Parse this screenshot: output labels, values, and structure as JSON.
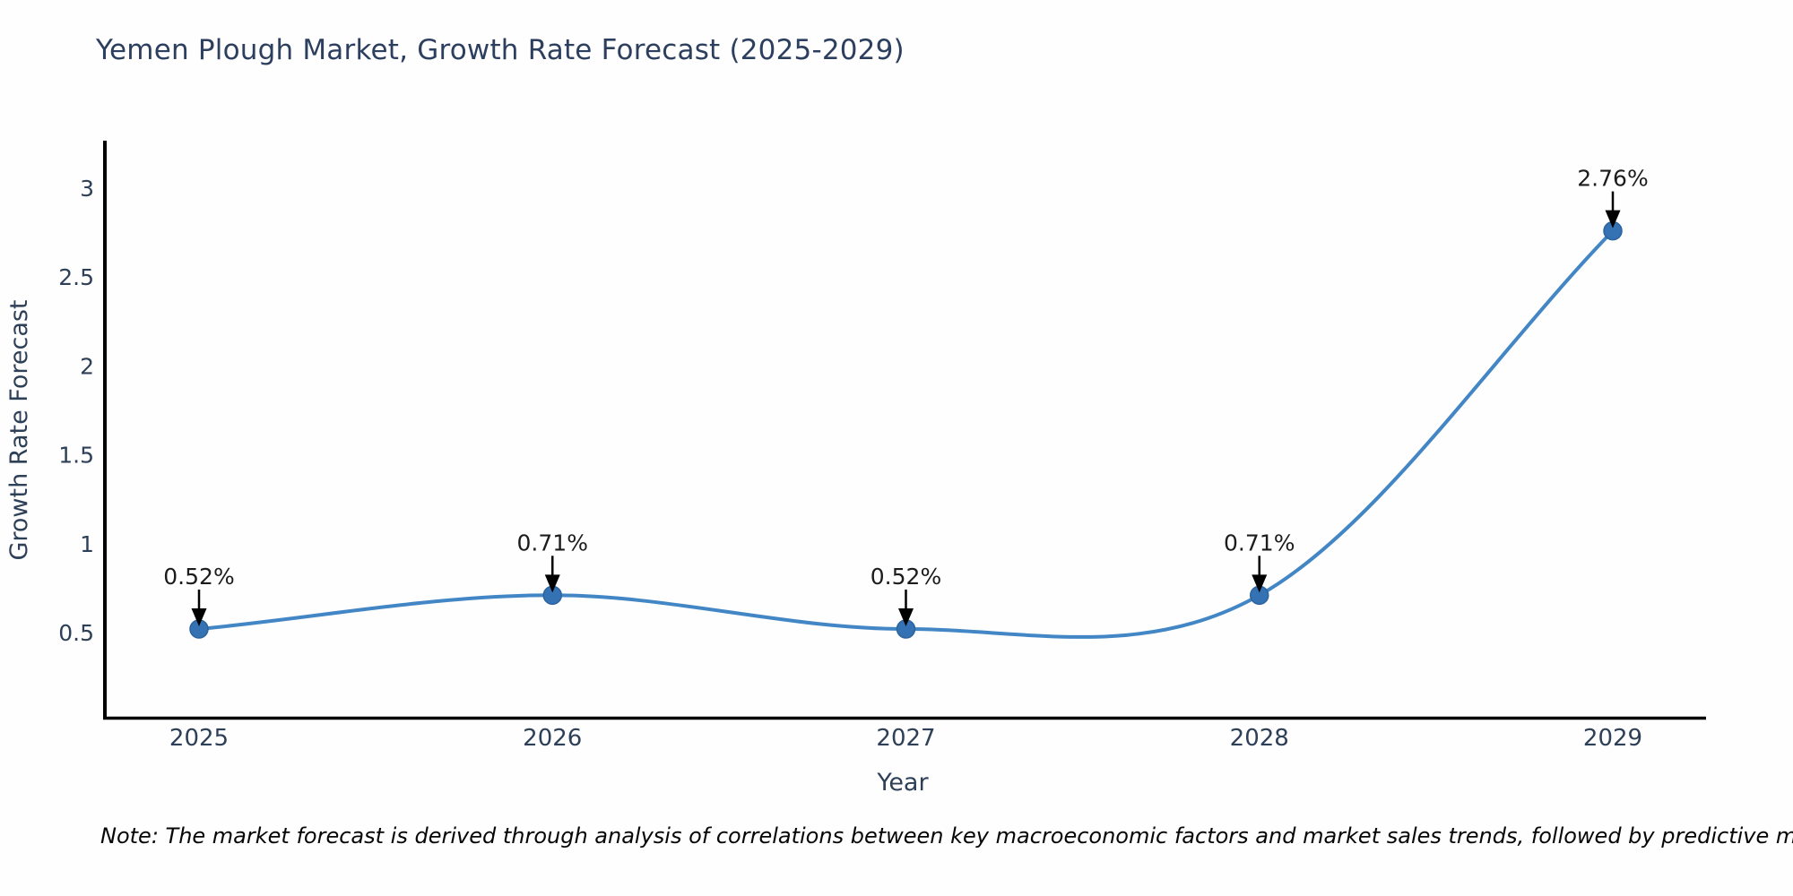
{
  "title": "Yemen Plough Market, Growth Rate Forecast (2025-2029)",
  "note": "Note: The market forecast is derived through analysis of correlations between key macroeconomic factors and market sales trends, followed by predictive modeling to project future sales",
  "colors": {
    "line": "#4286c5",
    "marker_fill": "#3572b3",
    "marker_edge": "#2d639e",
    "axis_line": "#000000",
    "axis_text": "#2e4058",
    "title_text": "#2d3f5e",
    "annotation_text": "#1c1c1c",
    "annotation_arrow": "#000000",
    "background": "#fefefe"
  },
  "chart_data": {
    "type": "line",
    "title": "Yemen Plough Market, Growth Rate Forecast (2025-2029)",
    "xlabel": "Year",
    "ylabel": "Growth Rate Forecast",
    "x": [
      2025,
      2026,
      2027,
      2028,
      2029
    ],
    "values": [
      0.52,
      0.71,
      0.52,
      0.71,
      2.76
    ],
    "point_labels": [
      "0.52%",
      "0.71%",
      "0.52%",
      "0.71%",
      "2.76%"
    ],
    "x_tick_labels": [
      "2025",
      "2026",
      "2027",
      "2028",
      "2029"
    ],
    "y_ticks": [
      0.5,
      1,
      1.5,
      2,
      2.5,
      3
    ],
    "y_tick_labels": [
      "0.5",
      "1",
      "1.5",
      "2",
      "2.5",
      "3"
    ],
    "xlim": [
      2024.73,
      2029.26
    ],
    "ylim": [
      0.02,
      3.25
    ],
    "grid": false,
    "legend": "none",
    "line_smoothing": "spline",
    "annotations": "value labels with downward arrows above each point"
  }
}
